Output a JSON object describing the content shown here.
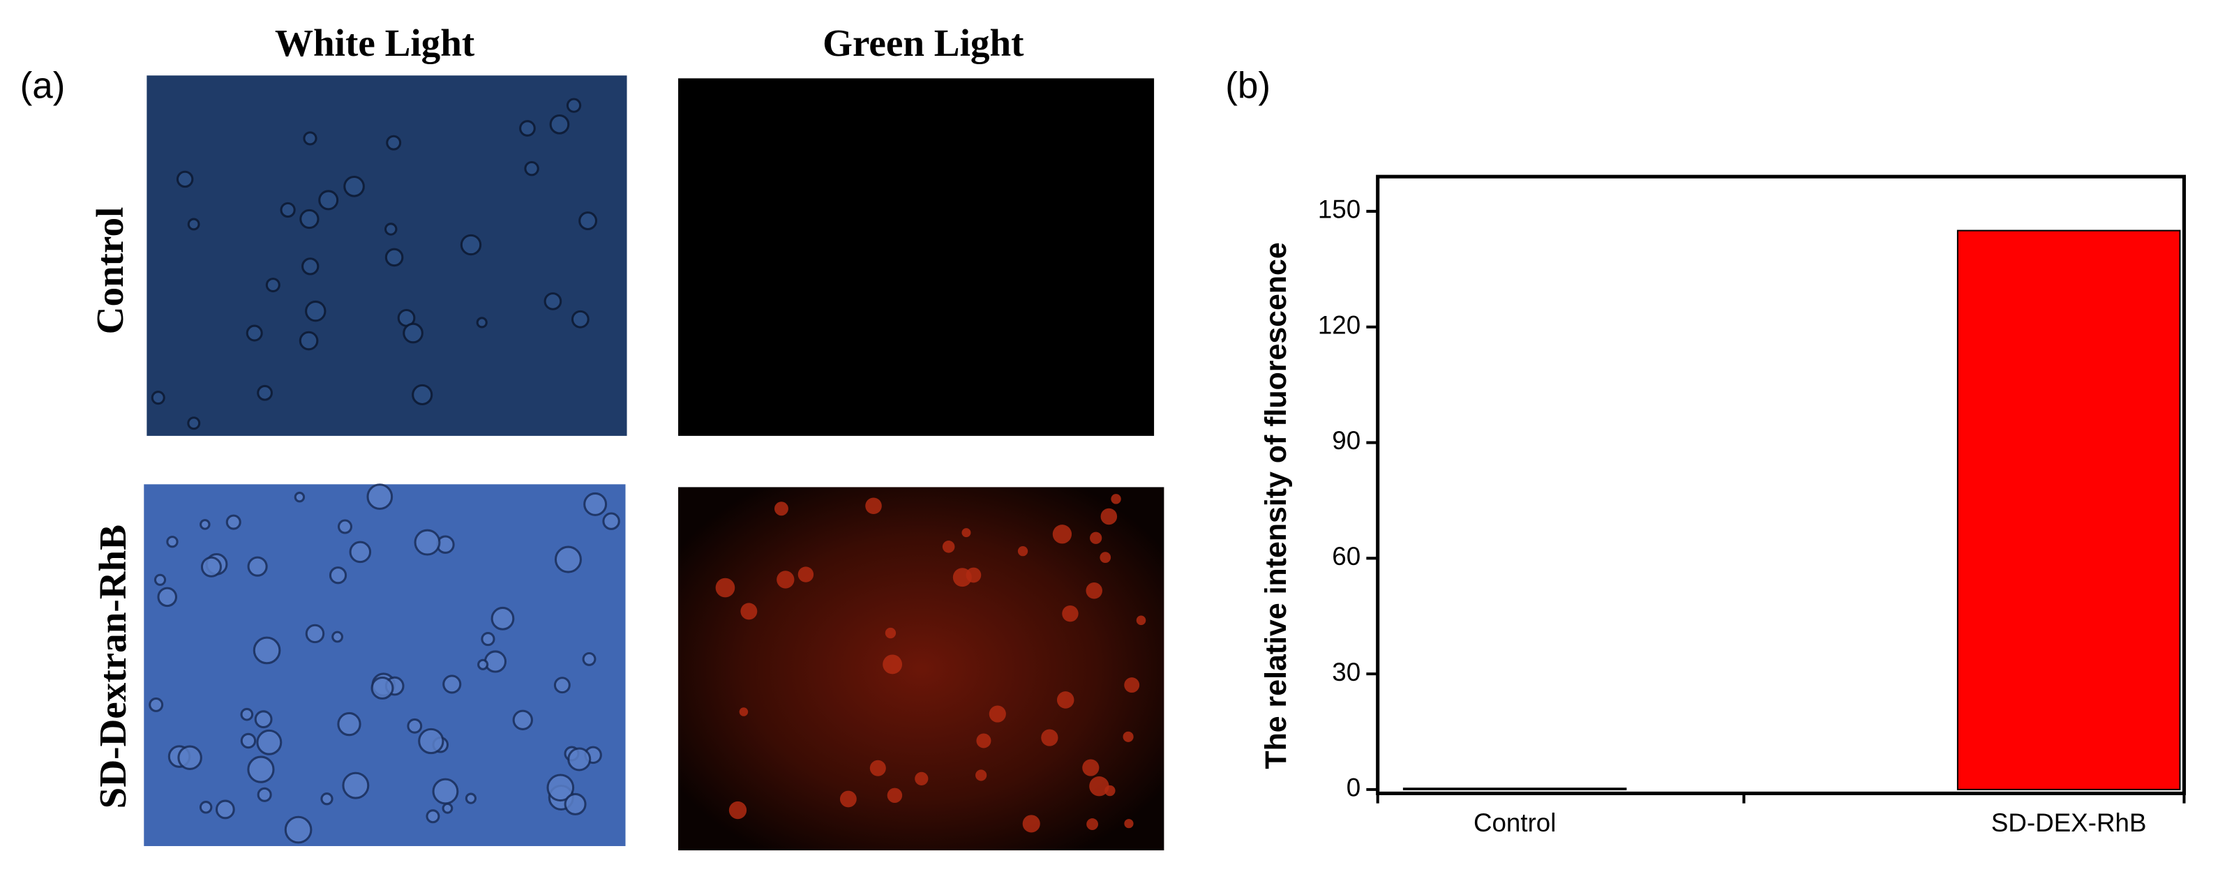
{
  "panels": {
    "a": {
      "label": "(a)",
      "columns": [
        "White Light",
        "Green Light"
      ],
      "rows": [
        "Control",
        "SD-Dextran-RhB"
      ]
    },
    "b": {
      "label": "(b)"
    }
  },
  "chart_data": {
    "type": "bar",
    "ylabel": "The relative intensity of fluorescence",
    "categories": [
      "Control",
      "SD-DEX-RhB"
    ],
    "values": [
      0.3,
      145
    ],
    "color": "#ff0000",
    "ylim": [
      -1,
      159
    ],
    "yticks": [
      0,
      30,
      60,
      90,
      120,
      150
    ]
  }
}
